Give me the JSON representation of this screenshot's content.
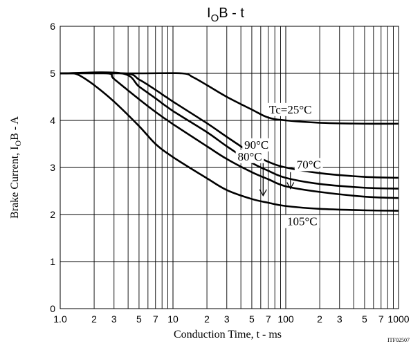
{
  "chart_data": {
    "type": "line",
    "title": {
      "base": "I",
      "sub": "O",
      "rest": "B - t"
    },
    "xlabel": "Conduction Time, t - ms",
    "ylabel": {
      "pre": "Brake Current, I",
      "sub": "O",
      "post": "B - A"
    },
    "x_scale": "log",
    "xlim": [
      1,
      1000
    ],
    "ylim": [
      0,
      6
    ],
    "grid": true,
    "x_tick_labels": [
      {
        "v": 1,
        "t": "1.0"
      },
      {
        "v": 2,
        "t": "2"
      },
      {
        "v": 3,
        "t": "3"
      },
      {
        "v": 5,
        "t": "5"
      },
      {
        "v": 7,
        "t": "7"
      },
      {
        "v": 10,
        "t": "10"
      },
      {
        "v": 20,
        "t": "2"
      },
      {
        "v": 30,
        "t": "3"
      },
      {
        "v": 50,
        "t": "5"
      },
      {
        "v": 70,
        "t": "7"
      },
      {
        "v": 100,
        "t": "100"
      },
      {
        "v": 200,
        "t": "2"
      },
      {
        "v": 300,
        "t": "3"
      },
      {
        "v": 500,
        "t": "5"
      },
      {
        "v": 700,
        "t": "7"
      },
      {
        "v": 1000,
        "t": "1000"
      }
    ],
    "y_tick_labels": [
      {
        "v": 0,
        "t": "0"
      },
      {
        "v": 1,
        "t": "1"
      },
      {
        "v": 2,
        "t": "2"
      },
      {
        "v": 3,
        "t": "3"
      },
      {
        "v": 4,
        "t": "4"
      },
      {
        "v": 5,
        "t": "5"
      },
      {
        "v": 6,
        "t": "6"
      }
    ],
    "series": [
      {
        "name": "Tc=25°C",
        "x": [
          1,
          5,
          12,
          15,
          20,
          30,
          50,
          70,
          100,
          200,
          500,
          1000
        ],
        "y": [
          5,
          5,
          5,
          4.92,
          4.75,
          4.5,
          4.23,
          4.06,
          4.0,
          3.95,
          3.93,
          3.93
        ]
      },
      {
        "name": "70°C",
        "x": [
          1,
          3.7,
          5,
          7,
          10,
          20,
          30,
          50,
          70,
          100,
          200,
          500,
          1000
        ],
        "y": [
          5,
          5,
          4.87,
          4.65,
          4.4,
          3.94,
          3.65,
          3.3,
          3.12,
          3.0,
          2.88,
          2.8,
          2.78
        ]
      },
      {
        "name": "80°C",
        "x": [
          1,
          3.5,
          5,
          7,
          10,
          20,
          30,
          50,
          70,
          100,
          200,
          500,
          1000
        ],
        "y": [
          5,
          5,
          4.72,
          4.47,
          4.2,
          3.75,
          3.45,
          3.1,
          2.93,
          2.78,
          2.65,
          2.57,
          2.55
        ]
      },
      {
        "name": "90°C",
        "x": [
          1,
          2.6,
          3,
          5,
          7,
          10,
          20,
          30,
          50,
          70,
          100,
          200,
          500,
          1000
        ],
        "y": [
          5,
          5,
          4.88,
          4.45,
          4.18,
          3.92,
          3.45,
          3.18,
          2.9,
          2.75,
          2.6,
          2.48,
          2.38,
          2.35
        ]
      },
      {
        "name": "105°C",
        "x": [
          1.1,
          1.3,
          1.5,
          2,
          3,
          5,
          7,
          10,
          20,
          30,
          50,
          70,
          100,
          200,
          500,
          1000
        ],
        "y": [
          5,
          5,
          4.95,
          4.75,
          4.4,
          3.88,
          3.5,
          3.22,
          2.77,
          2.52,
          2.33,
          2.25,
          2.18,
          2.12,
          2.09,
          2.08
        ]
      }
    ],
    "series_labels": [
      {
        "text": "Tc=25°C",
        "x": 110,
        "y": 4.15
      },
      {
        "text": "70°C",
        "x": 160,
        "y": 2.98
      },
      {
        "text": "80°C",
        "x": 48,
        "y": 3.15
      },
      {
        "text": "90°C",
        "x": 55,
        "y": 3.4
      },
      {
        "text": "105°C",
        "x": 140,
        "y": 1.77
      }
    ],
    "annotations": [
      {
        "name": "arrow-90",
        "from": {
          "x": 63,
          "y": 3.2
        },
        "to": {
          "x": 63,
          "y": 2.4
        }
      },
      {
        "name": "arrow-80",
        "from": {
          "x": 110,
          "y": 2.9
        },
        "to": {
          "x": 110,
          "y": 2.55
        }
      }
    ],
    "code": "ITF02507"
  }
}
